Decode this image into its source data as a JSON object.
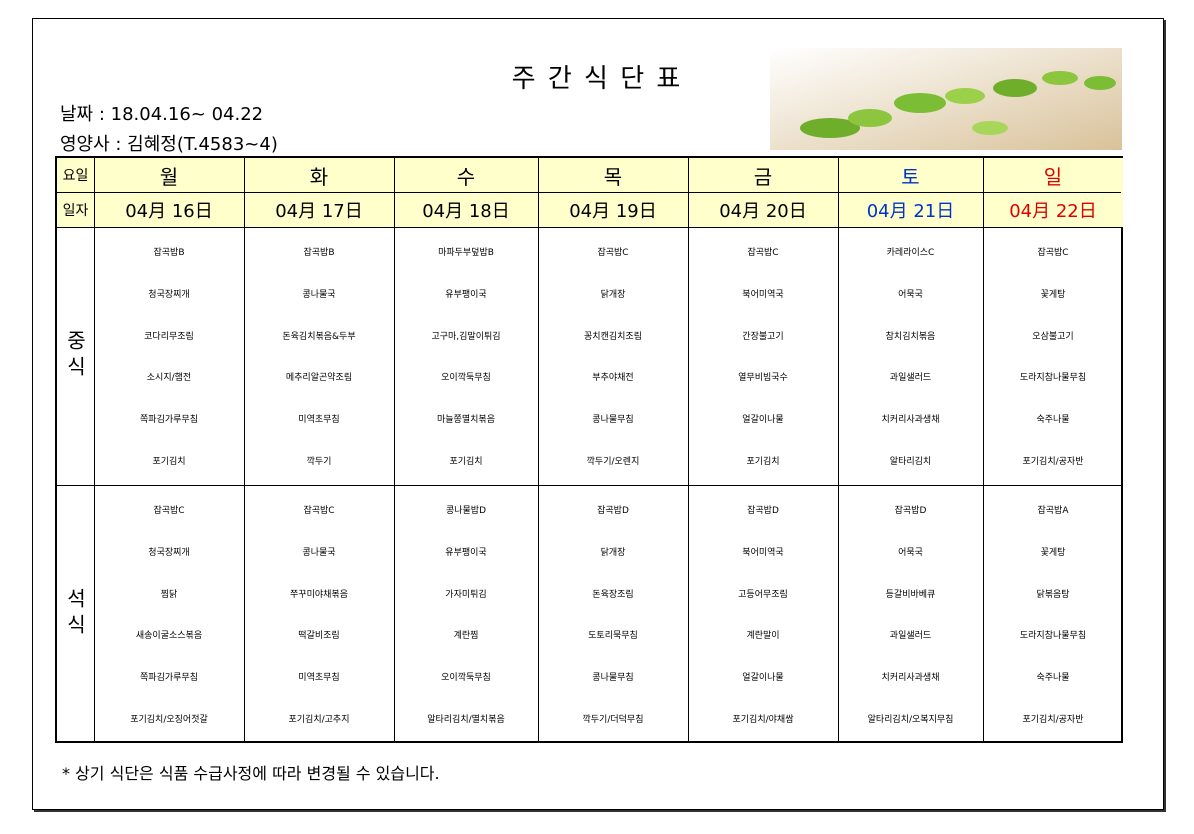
{
  "header": {
    "title": "주 간 식 단 표",
    "date": "날짜 : 18.04.16~ 04.22",
    "dietitian": "영양사 : 김혜정(T.4583~4)"
  },
  "table": {
    "day_label": "요일",
    "date_label": "일자",
    "days": [
      "월",
      "화",
      "수",
      "목",
      "금",
      "토",
      "일"
    ],
    "dates": [
      "04月 16日",
      "04月 17日",
      "04月 18日",
      "04月 19日",
      "04月 20日",
      "04月 21日",
      "04月 22日"
    ],
    "meals": [
      {
        "label": "중식",
        "rows": [
          [
            "잡곡밥B",
            "잡곡밥B",
            "마파두부덮밥B",
            "잡곡밥C",
            "잡곡밥C",
            "카레라이스C",
            "잡곡밥C"
          ],
          [
            "청국장찌개",
            "콩나물국",
            "유부팽이국",
            "닭개장",
            "북어미역국",
            "어묵국",
            "꽃게탕"
          ],
          [
            "코다리무조림",
            "돈육김치볶음&두부",
            "고구마,김말이튀김",
            "꽁치캔김치조림",
            "간장불고기",
            "참치김치볶음",
            "오삼불고기"
          ],
          [
            "소시지/햄전",
            "메추리알곤약조림",
            "오이깍둑무침",
            "부추야채전",
            "열무비빔국수",
            "과일샐러드",
            "도라지참나물무침"
          ],
          [
            "쪽파김가루무침",
            "미역초무침",
            "마늘쫑멸치볶음",
            "콩나물무침",
            "얼갈이나물",
            "치커리사과생채",
            "숙주나물"
          ],
          [
            "포기김치",
            "깍두기",
            "포기김치",
            "깍두기/오렌지",
            "포기김치",
            "알타리김치",
            "포기김치/공자반"
          ]
        ]
      },
      {
        "label": "석식",
        "rows": [
          [
            "잡곡밥C",
            "잡곡밥C",
            "콩나물밥D",
            "잡곡밥D",
            "잡곡밥D",
            "잡곡밥D",
            "잡곡밥A"
          ],
          [
            "청국장찌개",
            "콩나물국",
            "유부팽이국",
            "닭개장",
            "북어미역국",
            "어묵국",
            "꽃게탕"
          ],
          [
            "찜닭",
            "쭈꾸미야채볶음",
            "가자미튀김",
            "돈육장조림",
            "고등어무조림",
            "등갈비바베큐",
            "닭볶음탕"
          ],
          [
            "새송이굴소스볶음",
            "떡갈비조림",
            "계란찜",
            "도토리묵무침",
            "계란말이",
            "과일샐러드",
            "도라지참나물무침"
          ],
          [
            "쪽파김가루무침",
            "미역초무침",
            "오이깍둑무침",
            "콩나물무침",
            "얼갈이나물",
            "치커리사과생채",
            "숙주나물"
          ],
          [
            "포기김치/오징어젓갈",
            "포기김치/고추지",
            "알타리김치/멸치볶음",
            "깍두기/더덕무침",
            "포기김치/야채쌈",
            "알타리김치/오복지무침",
            "포기김치/공자반"
          ]
        ]
      }
    ]
  },
  "footnote": "* 상기 식단은 식품 수급사정에 따라 변경될 수 있습니다."
}
